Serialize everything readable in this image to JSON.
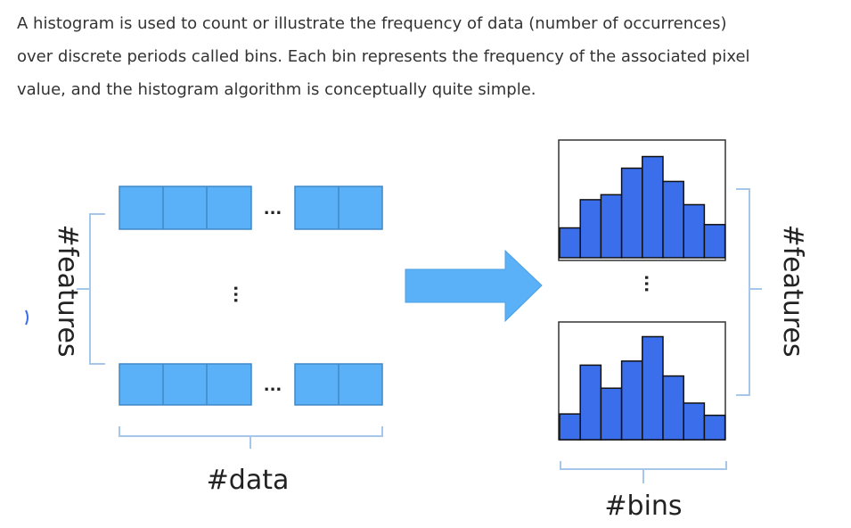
{
  "paragraph": {
    "line1": "A histogram is used to count or illustrate the frequency of data (number of occurrences)",
    "line2": "over discrete periods called bins. Each bin represents the frequency of the associated pixel",
    "line3": "value, and the histogram algorithm is conceptually quite simple."
  },
  "diagram": {
    "left_axis_label": "#features",
    "right_axis_label": "#features",
    "data_label": "#data",
    "bins_label": "#bins",
    "h_ellipsis": "...",
    "v_ellipsis": "...",
    "cell_color": "#5ab1f7",
    "cell_border": "#3f87c7",
    "arrow_color": "#5ab1f7",
    "bar_color": "#3b6eea",
    "bracket_color": "#a6c7ea",
    "histogram_1_values": [
      1.8,
      3.5,
      3.8,
      5.4,
      6.1,
      4.6,
      3.2,
      2.0
    ],
    "histogram_2_values": [
      1.9,
      5.5,
      3.8,
      5.8,
      7.6,
      4.7,
      2.7,
      1.8
    ]
  }
}
